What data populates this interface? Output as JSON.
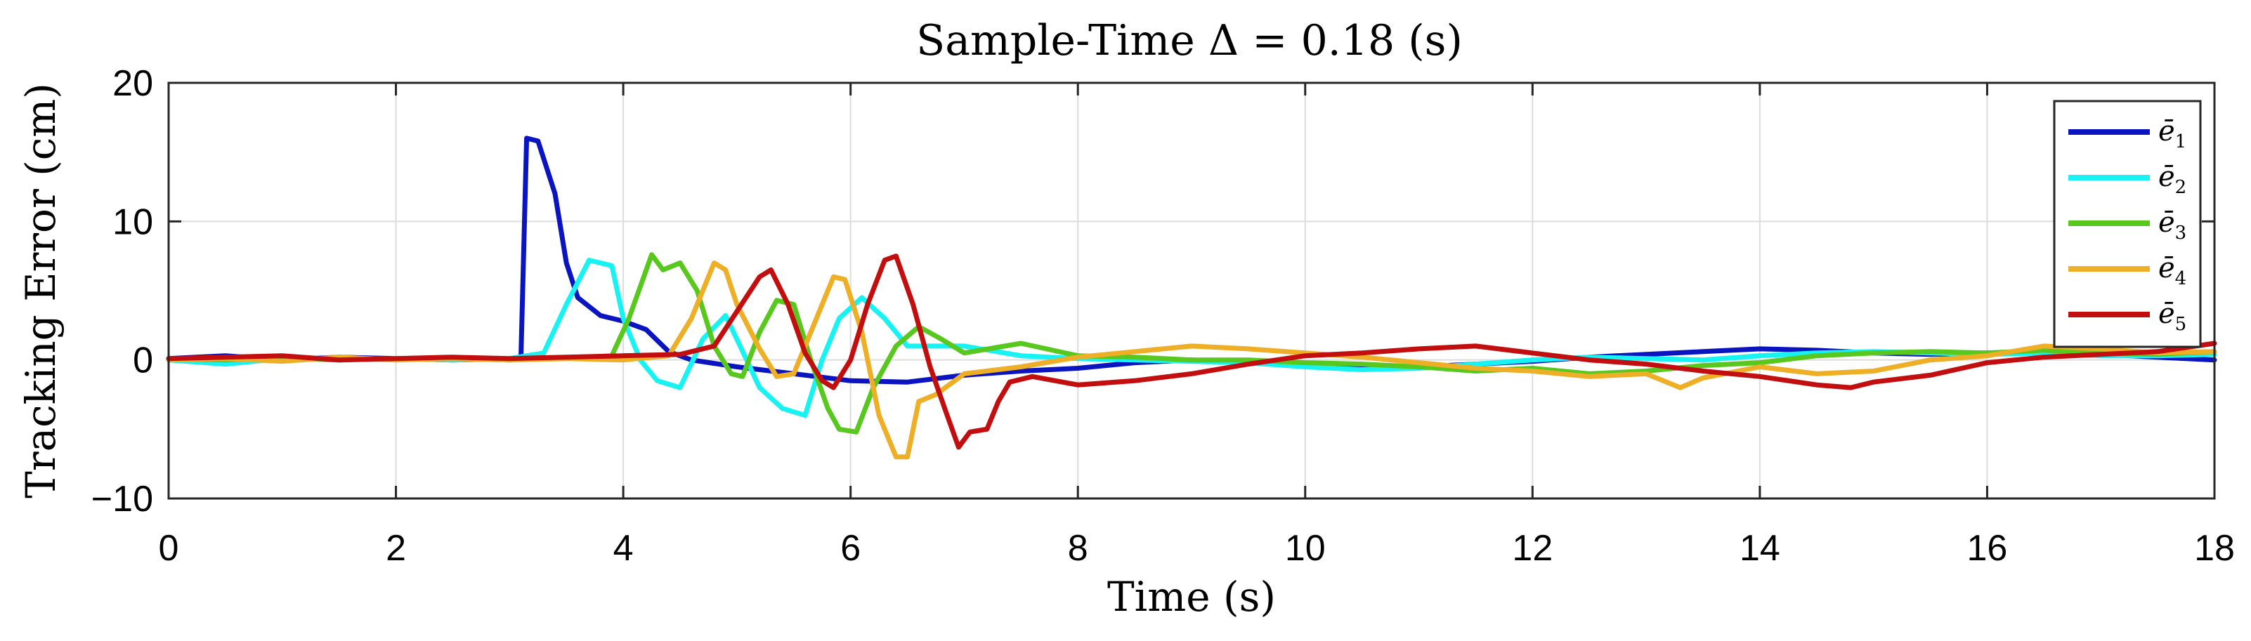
{
  "chart_data": {
    "type": "line",
    "title": "Sample-Time Δ = 0.18 (s)",
    "xlabel": "Time (s)",
    "ylabel": "Tracking Error (cm)",
    "xlim": [
      0,
      18
    ],
    "ylim": [
      -10,
      20
    ],
    "xticks": [
      "0",
      "2",
      "4",
      "6",
      "8",
      "10",
      "12",
      "14",
      "16",
      "18"
    ],
    "yticks": [
      "−10",
      "0",
      "10",
      "20"
    ],
    "xtick_values": [
      0,
      2,
      4,
      6,
      8,
      10,
      12,
      14,
      16,
      18
    ],
    "ytick_values": [
      -10,
      0,
      10,
      20
    ],
    "grid": true,
    "legend_position": "top-right",
    "series": [
      {
        "name": "ē",
        "subscript": "1",
        "color": "#0a14c0",
        "points": [
          [
            0,
            0.1
          ],
          [
            0.5,
            0.3
          ],
          [
            1,
            0
          ],
          [
            1.5,
            0.2
          ],
          [
            2,
            0.1
          ],
          [
            2.5,
            0
          ],
          [
            3.05,
            0.1
          ],
          [
            3.1,
            0.2
          ],
          [
            3.15,
            16
          ],
          [
            3.25,
            15.8
          ],
          [
            3.4,
            12
          ],
          [
            3.5,
            7
          ],
          [
            3.6,
            4.5
          ],
          [
            3.8,
            3.2
          ],
          [
            4.0,
            2.8
          ],
          [
            4.2,
            2.2
          ],
          [
            4.4,
            0.6
          ],
          [
            4.6,
            0
          ],
          [
            5,
            -0.5
          ],
          [
            5.5,
            -1
          ],
          [
            6,
            -1.5
          ],
          [
            6.5,
            -1.6
          ],
          [
            7,
            -1.1
          ],
          [
            7.5,
            -0.8
          ],
          [
            8,
            -0.6
          ],
          [
            8.5,
            -0.2
          ],
          [
            9,
            0
          ],
          [
            9.5,
            -0.2
          ],
          [
            10,
            -0.4
          ],
          [
            10.5,
            -0.6
          ],
          [
            11,
            -0.5
          ],
          [
            11.5,
            -0.3
          ],
          [
            12,
            -0.1
          ],
          [
            12.5,
            0.2
          ],
          [
            13,
            0.4
          ],
          [
            13.5,
            0.6
          ],
          [
            14,
            0.8
          ],
          [
            14.5,
            0.7
          ],
          [
            15,
            0.5
          ],
          [
            15.5,
            0.4
          ],
          [
            16,
            0.5
          ],
          [
            16.5,
            0.6
          ],
          [
            17,
            0.4
          ],
          [
            17.5,
            0.2
          ],
          [
            18,
            0
          ]
        ]
      },
      {
        "name": "ē",
        "subscript": "2",
        "color": "#17f2f2",
        "points": [
          [
            0,
            0
          ],
          [
            0.5,
            -0.3
          ],
          [
            1,
            0.1
          ],
          [
            1.5,
            0
          ],
          [
            2,
            0.1
          ],
          [
            2.5,
            0
          ],
          [
            3,
            0.1
          ],
          [
            3.3,
            0.5
          ],
          [
            3.5,
            4
          ],
          [
            3.7,
            7.2
          ],
          [
            3.9,
            6.8
          ],
          [
            4.0,
            3
          ],
          [
            4.15,
            0
          ],
          [
            4.3,
            -1.5
          ],
          [
            4.5,
            -2
          ],
          [
            4.7,
            1.5
          ],
          [
            4.9,
            3.2
          ],
          [
            5.0,
            1.5
          ],
          [
            5.2,
            -2
          ],
          [
            5.4,
            -3.5
          ],
          [
            5.6,
            -4
          ],
          [
            5.75,
            0
          ],
          [
            5.9,
            3
          ],
          [
            6.1,
            4.5
          ],
          [
            6.3,
            3
          ],
          [
            6.5,
            1
          ],
          [
            7,
            1
          ],
          [
            7.5,
            0.3
          ],
          [
            8,
            0.1
          ],
          [
            8.5,
            0
          ],
          [
            9,
            -0.1
          ],
          [
            9.5,
            -0.2
          ],
          [
            10,
            -0.5
          ],
          [
            10.5,
            -0.7
          ],
          [
            11,
            -0.6
          ],
          [
            11.5,
            -0.3
          ],
          [
            12,
            0
          ],
          [
            12.5,
            0.2
          ],
          [
            13,
            0.1
          ],
          [
            13.5,
            0
          ],
          [
            14,
            0.3
          ],
          [
            14.5,
            0.5
          ],
          [
            15,
            0.6
          ],
          [
            15.5,
            0.5
          ],
          [
            16,
            0.4
          ],
          [
            16.5,
            0.5
          ],
          [
            17,
            0.3
          ],
          [
            17.5,
            0.3
          ],
          [
            18,
            0.4
          ]
        ]
      },
      {
        "name": "ē",
        "subscript": "3",
        "color": "#58c71e",
        "points": [
          [
            0,
            0.1
          ],
          [
            0.5,
            0
          ],
          [
            1,
            0.2
          ],
          [
            1.5,
            0
          ],
          [
            2,
            0.1
          ],
          [
            2.5,
            0.1
          ],
          [
            3,
            0
          ],
          [
            3.5,
            0.1
          ],
          [
            3.9,
            0.3
          ],
          [
            4.05,
            3
          ],
          [
            4.25,
            7.6
          ],
          [
            4.35,
            6.5
          ],
          [
            4.5,
            7
          ],
          [
            4.65,
            5
          ],
          [
            4.8,
            1
          ],
          [
            4.95,
            -1
          ],
          [
            5.05,
            -1.2
          ],
          [
            5.2,
            2
          ],
          [
            5.35,
            4.3
          ],
          [
            5.5,
            4
          ],
          [
            5.65,
            0
          ],
          [
            5.8,
            -3.5
          ],
          [
            5.9,
            -5
          ],
          [
            6.05,
            -5.2
          ],
          [
            6.2,
            -2
          ],
          [
            6.4,
            1
          ],
          [
            6.6,
            2.4
          ],
          [
            6.8,
            1.5
          ],
          [
            7,
            0.5
          ],
          [
            7.5,
            1.2
          ],
          [
            8,
            0.3
          ],
          [
            8.5,
            0.2
          ],
          [
            9,
            0
          ],
          [
            9.5,
            0
          ],
          [
            10,
            -0.2
          ],
          [
            10.5,
            -0.3
          ],
          [
            11,
            -0.5
          ],
          [
            11.5,
            -0.8
          ],
          [
            12,
            -0.6
          ],
          [
            12.5,
            -1
          ],
          [
            13,
            -0.8
          ],
          [
            13.5,
            -0.4
          ],
          [
            14,
            -0.2
          ],
          [
            14.5,
            0.3
          ],
          [
            15,
            0.5
          ],
          [
            15.5,
            0.6
          ],
          [
            16,
            0.5
          ],
          [
            16.5,
            0.7
          ],
          [
            17,
            0.5
          ],
          [
            17.5,
            0.4
          ],
          [
            18,
            0.6
          ]
        ]
      },
      {
        "name": "ē",
        "subscript": "4",
        "color": "#eeae25",
        "points": [
          [
            0,
            0
          ],
          [
            0.5,
            0.1
          ],
          [
            1,
            -0.1
          ],
          [
            1.5,
            0.2
          ],
          [
            2,
            0
          ],
          [
            2.5,
            0.1
          ],
          [
            3,
            0
          ],
          [
            3.5,
            0.1
          ],
          [
            4,
            0
          ],
          [
            4.4,
            0.3
          ],
          [
            4.6,
            3
          ],
          [
            4.8,
            7
          ],
          [
            4.9,
            6.5
          ],
          [
            5.0,
            4
          ],
          [
            5.2,
            0.8
          ],
          [
            5.35,
            -1.2
          ],
          [
            5.5,
            -1
          ],
          [
            5.7,
            3
          ],
          [
            5.85,
            6
          ],
          [
            5.95,
            5.8
          ],
          [
            6.1,
            2
          ],
          [
            6.25,
            -4
          ],
          [
            6.4,
            -7
          ],
          [
            6.5,
            -7
          ],
          [
            6.6,
            -3
          ],
          [
            6.75,
            -2.5
          ],
          [
            7,
            -1
          ],
          [
            7.5,
            -0.5
          ],
          [
            8,
            0.2
          ],
          [
            8.5,
            0.6
          ],
          [
            9,
            1
          ],
          [
            9.5,
            0.8
          ],
          [
            10,
            0.5
          ],
          [
            10.5,
            0.2
          ],
          [
            11,
            -0.2
          ],
          [
            11.5,
            -0.6
          ],
          [
            12,
            -0.8
          ],
          [
            12.5,
            -1.2
          ],
          [
            13,
            -1
          ],
          [
            13.3,
            -2
          ],
          [
            13.5,
            -1.3
          ],
          [
            14,
            -0.5
          ],
          [
            14.5,
            -1
          ],
          [
            15,
            -0.8
          ],
          [
            15.5,
            0
          ],
          [
            16,
            0.3
          ],
          [
            16.5,
            1
          ],
          [
            17,
            0.8
          ],
          [
            17.5,
            0.5
          ],
          [
            18,
            0.6
          ]
        ]
      },
      {
        "name": "ē",
        "subscript": "5",
        "color": "#c20e0e",
        "points": [
          [
            0,
            0.1
          ],
          [
            0.5,
            0.2
          ],
          [
            1,
            0.3
          ],
          [
            1.5,
            0
          ],
          [
            2,
            0.1
          ],
          [
            2.5,
            0.2
          ],
          [
            3,
            0.1
          ],
          [
            3.5,
            0.2
          ],
          [
            4,
            0.3
          ],
          [
            4.5,
            0.4
          ],
          [
            4.8,
            1
          ],
          [
            5.0,
            3.5
          ],
          [
            5.2,
            6
          ],
          [
            5.3,
            6.5
          ],
          [
            5.45,
            4
          ],
          [
            5.6,
            0.5
          ],
          [
            5.75,
            -1.5
          ],
          [
            5.85,
            -2
          ],
          [
            6.0,
            0
          ],
          [
            6.15,
            4
          ],
          [
            6.3,
            7.2
          ],
          [
            6.4,
            7.5
          ],
          [
            6.55,
            4
          ],
          [
            6.7,
            -0.5
          ],
          [
            6.85,
            -4
          ],
          [
            6.95,
            -6.3
          ],
          [
            7.05,
            -5.2
          ],
          [
            7.2,
            -5
          ],
          [
            7.3,
            -3
          ],
          [
            7.4,
            -1.6
          ],
          [
            7.6,
            -1.2
          ],
          [
            8,
            -1.8
          ],
          [
            8.5,
            -1.5
          ],
          [
            9,
            -1
          ],
          [
            9.5,
            -0.3
          ],
          [
            10,
            0.3
          ],
          [
            10.5,
            0.5
          ],
          [
            11,
            0.8
          ],
          [
            11.5,
            1
          ],
          [
            12,
            0.5
          ],
          [
            12.5,
            0
          ],
          [
            13,
            -0.3
          ],
          [
            13.5,
            -0.8
          ],
          [
            14,
            -1.2
          ],
          [
            14.5,
            -1.8
          ],
          [
            14.8,
            -2
          ],
          [
            15,
            -1.6
          ],
          [
            15.5,
            -1.1
          ],
          [
            16,
            -0.2
          ],
          [
            16.5,
            0.2
          ],
          [
            17,
            0.4
          ],
          [
            17.5,
            0.6
          ],
          [
            18,
            1.2
          ]
        ]
      }
    ]
  }
}
